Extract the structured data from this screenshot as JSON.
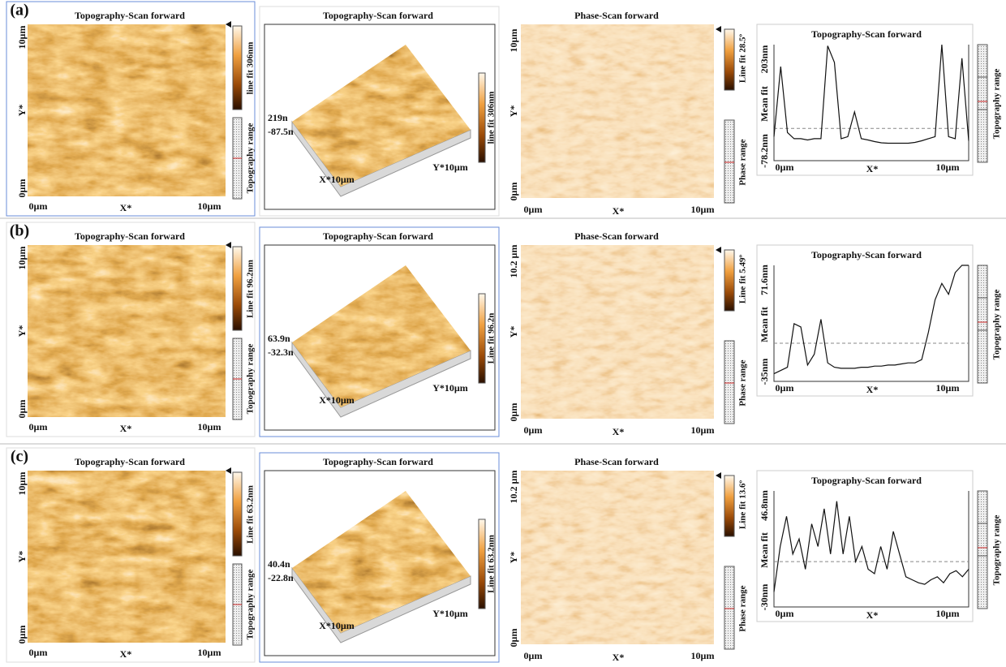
{
  "rows": [
    {
      "label": "(a)",
      "topo2d": {
        "title": "Topography-Scan forward",
        "y_top": "10µm",
        "y_axis": "Y*",
        "y_bottom": "0µm",
        "x_left": "0µm",
        "x_axis": "X*",
        "x_right": "10µm",
        "colorbar_label": "line fit 306nm",
        "range_label": "Topography range"
      },
      "topo3d": {
        "title": "Topography-Scan forward",
        "z_max": "219n",
        "z_min": "-87.5n",
        "x_axis": "X*10µm",
        "y_axis": "Y*10µm",
        "colorbar_label": "line fit 306nm"
      },
      "phase": {
        "title": "Phase-Scan forward",
        "y_top": "10µm",
        "y_axis": "Y*",
        "y_bottom": "0µm",
        "x_left": "0µm",
        "x_axis": "X*",
        "x_right": "10µm",
        "colorbar_label": "Line fit 28.5º",
        "range_label": "Phase range"
      },
      "profile": {
        "title": "Topography-Scan forward",
        "y_max": {
          "value": 203,
          "label": "203nm"
        },
        "y_mid": "Mean fit",
        "y_min": {
          "value": -78.2,
          "label": "-78.2nm"
        },
        "x_left": "0µm",
        "x_axis": "X*",
        "x_right": "10µm",
        "range_label": "Topography range",
        "values": [
          -20,
          150,
          -10,
          -25,
          -25,
          -28,
          -25,
          -25,
          200,
          160,
          -25,
          -20,
          40,
          -25,
          -28,
          -32,
          -35,
          -36,
          -36,
          -36,
          -36,
          -34,
          -30,
          -25,
          -20,
          203,
          -20,
          -25,
          170,
          -30
        ]
      }
    },
    {
      "label": "(b)",
      "topo2d": {
        "title": "Topography-Scan forward",
        "y_top": "10µm",
        "y_axis": "Y*",
        "y_bottom": "0µm",
        "x_left": "0µm",
        "x_axis": "X*",
        "x_right": "10µm",
        "colorbar_label": "Line fit 96.2nm",
        "range_label": "Topography range"
      },
      "topo3d": {
        "title": "Topography-Scan forward",
        "z_max": "63.9n",
        "z_min": "-32.3n",
        "x_axis": "X*10µm",
        "y_axis": "Y*10µm",
        "colorbar_label": "Line fit 96.2n"
      },
      "phase": {
        "title": "Phase-Scan forward",
        "y_top": "10.2 µm",
        "y_axis": "Y*",
        "y_bottom": "0µm",
        "x_left": "0µm",
        "x_axis": "X*",
        "x_right": "10µm",
        "colorbar_label": "Line fit 5.49º",
        "range_label": "Phase range"
      },
      "profile": {
        "title": "Topography-Scan forward",
        "y_max": {
          "value": 71.6,
          "label": "71.6nm"
        },
        "y_mid": "Mean fit",
        "y_min": {
          "value": -35,
          "label": "-35nm"
        },
        "x_left": "0µm",
        "x_axis": "X*",
        "x_right": "10µm",
        "range_label": "Topography range",
        "values": [
          -28,
          -25,
          -22,
          18,
          15,
          -20,
          -10,
          22,
          -18,
          -22,
          -23,
          -23,
          -23,
          -22,
          -22,
          -21,
          -21,
          -20,
          -20,
          -19,
          -18,
          -18,
          -15,
          10,
          40,
          55,
          45,
          65,
          71.6,
          71.6
        ]
      }
    },
    {
      "label": "(c)",
      "topo2d": {
        "title": "Topography-Scan forward",
        "y_top": "10µm",
        "y_axis": "Y*",
        "y_bottom": "0µm",
        "x_left": "0µm",
        "x_axis": "X*",
        "x_right": "10µm",
        "colorbar_label": "Line fit 63.2nm",
        "range_label": "Topography range"
      },
      "topo3d": {
        "title": "Topography-Scan forward",
        "z_max": "40.4n",
        "z_min": "-22.8n",
        "x_axis": "X*10µm",
        "y_axis": "Y*10µm",
        "colorbar_label": "Line fit 63.2nm"
      },
      "phase": {
        "title": "Phase-Scan forward",
        "y_top": "10.2 µm",
        "y_axis": "Y*",
        "y_bottom": "0µm",
        "x_left": "0µm",
        "x_axis": "X*",
        "x_right": "10µm",
        "colorbar_label": "Line fit 13.6º",
        "range_label": "Phase range"
      },
      "profile": {
        "title": "Topography-Scan forward",
        "y_max": {
          "value": 46.8,
          "label": "46.8nm"
        },
        "y_mid": "Mean fit",
        "y_min": {
          "value": -30,
          "label": "-30nm"
        },
        "x_left": "0µm",
        "x_axis": "X*",
        "x_right": "10µm",
        "range_label": "Topography range",
        "values": [
          -20,
          10,
          30,
          5,
          15,
          -5,
          25,
          10,
          35,
          5,
          40,
          5,
          30,
          0,
          10,
          -5,
          -8,
          10,
          -5,
          20,
          5,
          -10,
          -12,
          -14,
          -15,
          -12,
          -10,
          -14,
          -8,
          -6,
          -10,
          -5
        ]
      }
    }
  ]
}
